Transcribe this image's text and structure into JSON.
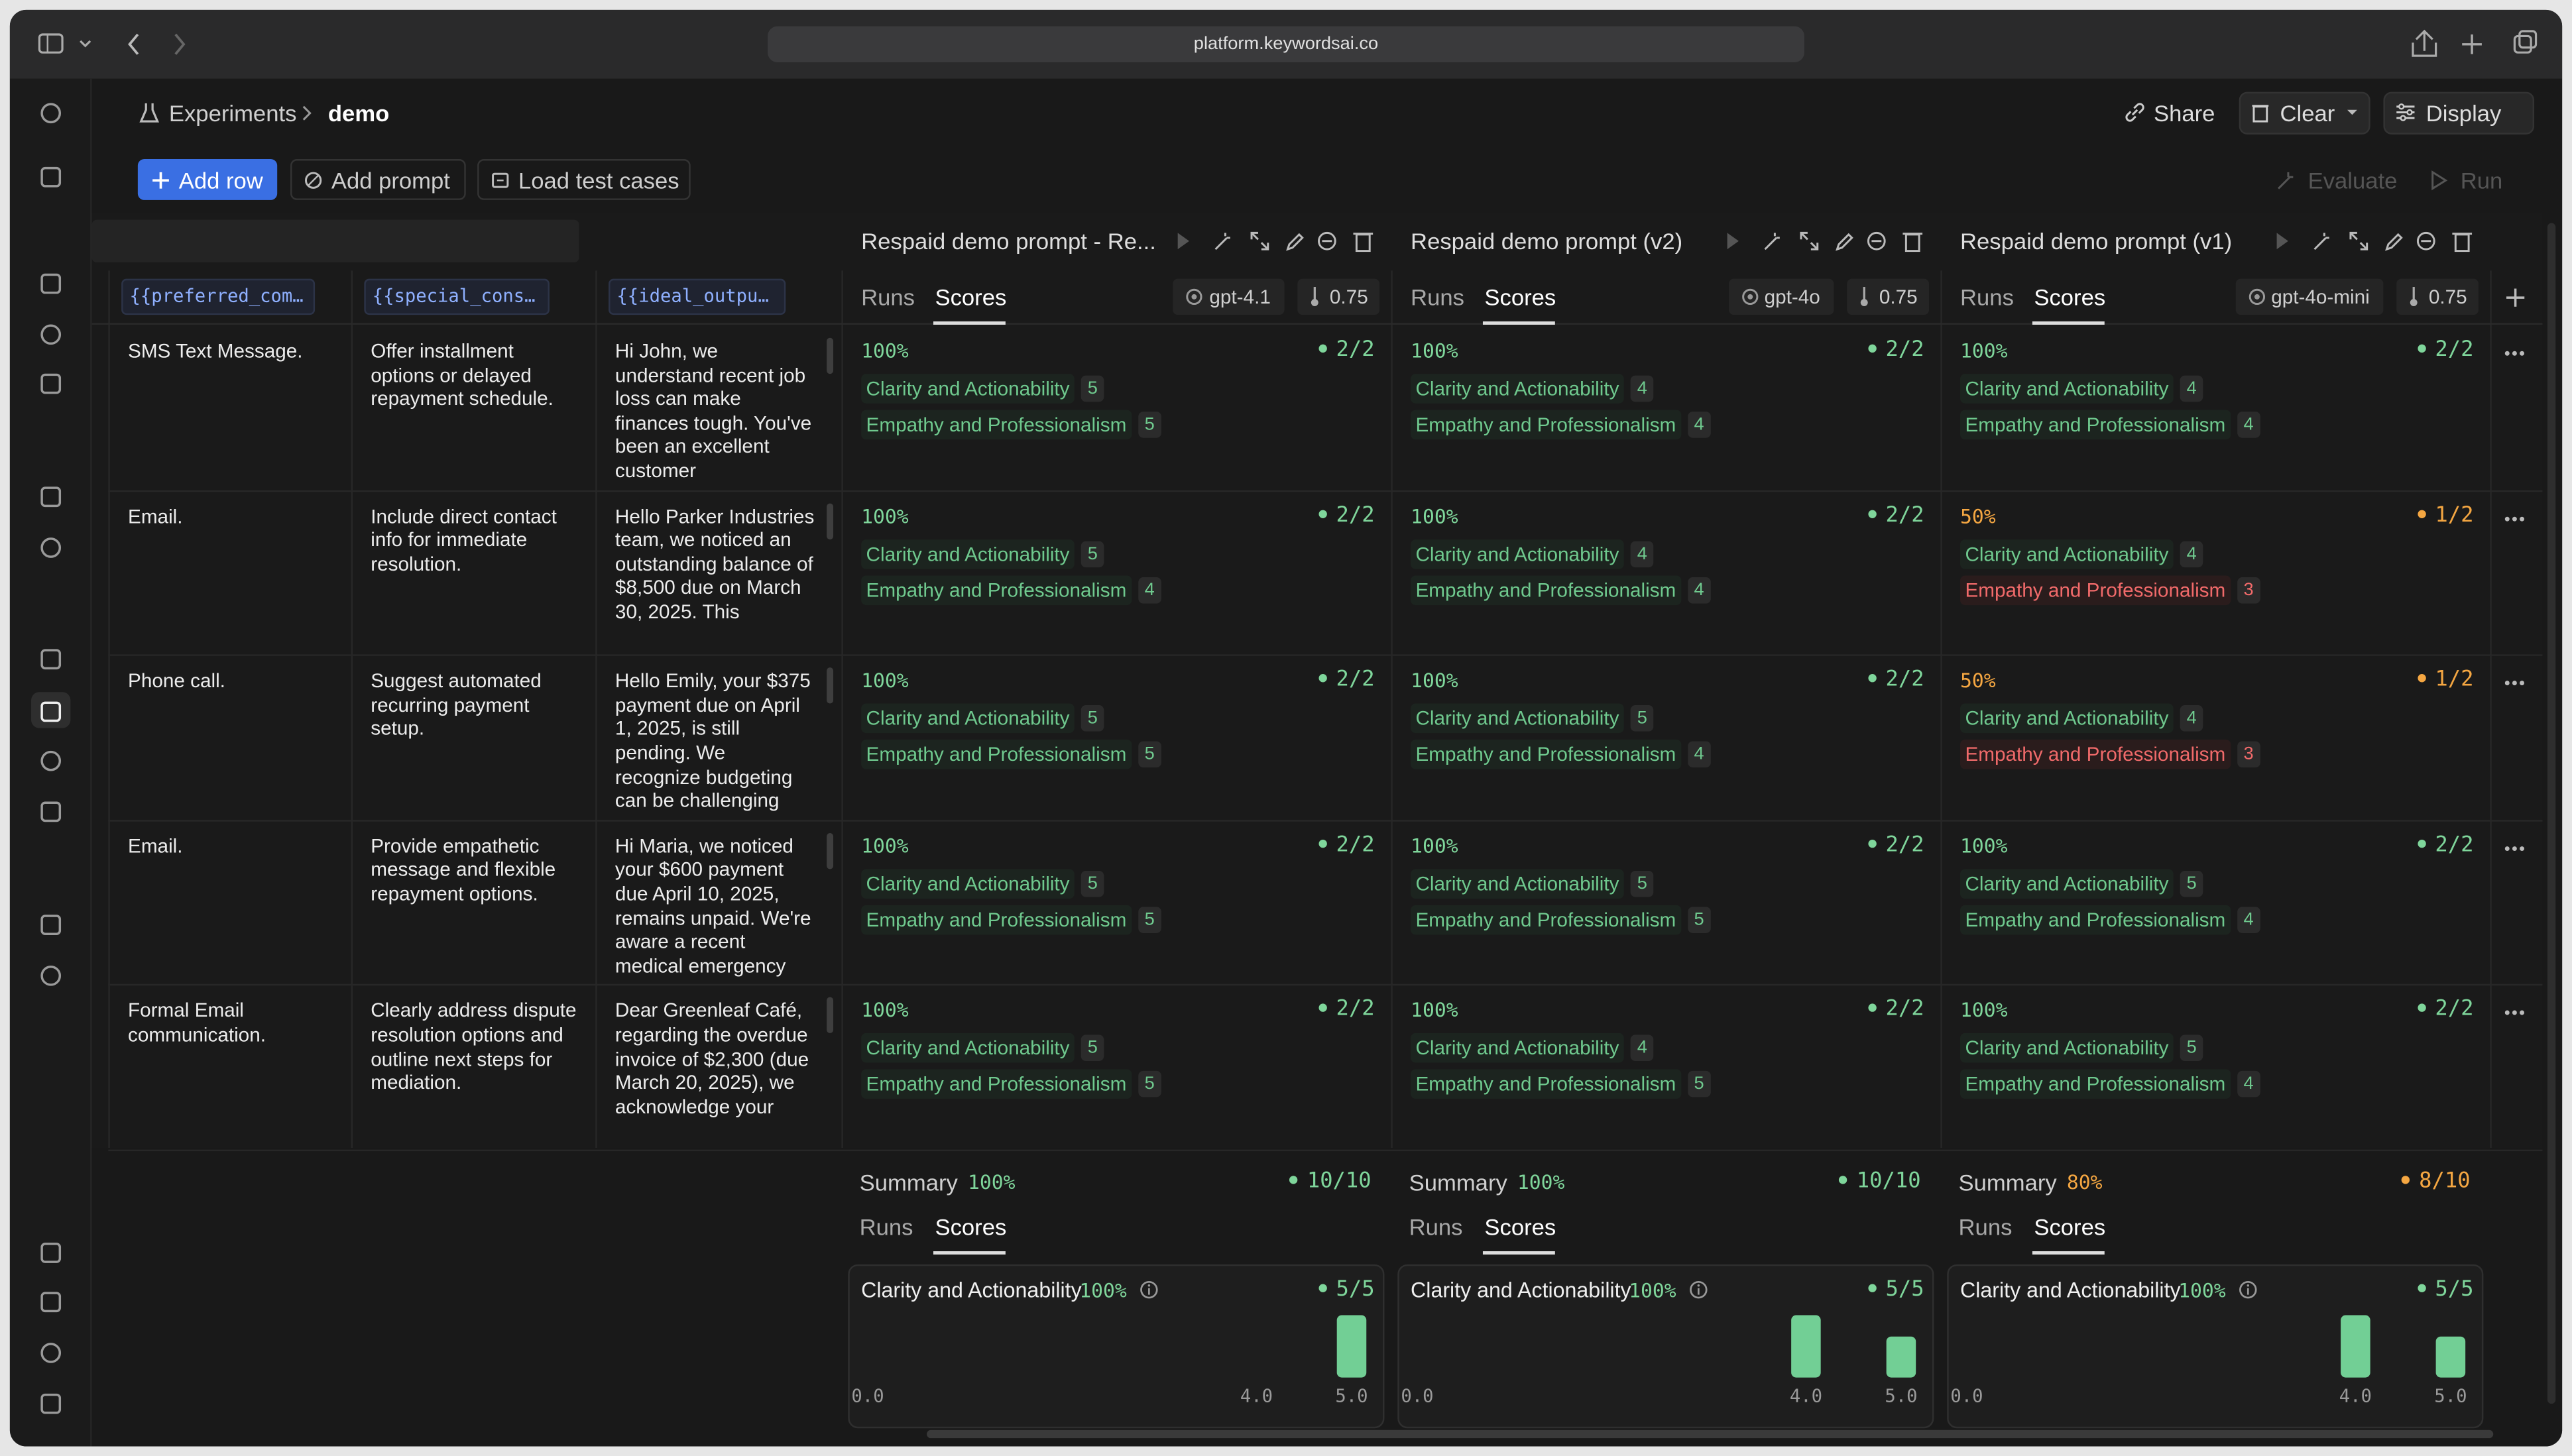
{
  "browser": {
    "url": "platform.keywordsai.co"
  },
  "breadcrumb": [
    "Experiments",
    "demo"
  ],
  "header_actions": [
    "Share",
    "Clear",
    "Display"
  ],
  "toolbar": {
    "left": [
      "Add row",
      "Add prompt",
      "Load test cases"
    ],
    "right": [
      "Evaluate",
      "Run"
    ]
  },
  "variables": [
    "{{preferred_comm…",
    "{{special_consid…",
    "{{ideal_output}}"
  ],
  "tabs": [
    "Runs",
    "Scores"
  ],
  "metrics": [
    "Clarity and Actionability",
    "Empathy and Professionalism"
  ],
  "summary_label": "Summary",
  "prompts": [
    {
      "title": "Respaid demo prompt - Re...",
      "model": "gpt-4.1",
      "temperature": 0.75,
      "summary": {
        "score": "100%",
        "count": "10/10",
        "card": {
          "score": "100%",
          "count": "5/5",
          "ticks": [
            {
              "value": 0,
              "label": "0.0"
            },
            {
              "value": 4,
              "label": "4.0"
            },
            {
              "value": 5,
              "label": "5.0"
            }
          ],
          "bars": [
            {
              "score": 5,
              "count": 5
            }
          ]
        }
      }
    },
    {
      "title": "Respaid demo prompt (v2)",
      "model": "gpt-4o",
      "temperature": 0.75,
      "summary": {
        "score": "100%",
        "count": "10/10",
        "card": {
          "score": "100%",
          "count": "5/5",
          "ticks": [
            {
              "value": 0,
              "label": "0.0"
            },
            {
              "value": 4,
              "label": "4.0"
            },
            {
              "value": 5,
              "label": "5.0"
            }
          ],
          "bars": [
            {
              "score": 4,
              "count": 3
            },
            {
              "score": 5,
              "count": 2
            }
          ]
        }
      }
    },
    {
      "title": "Respaid demo prompt (v1)",
      "model": "gpt-4o-mini",
      "temperature": 0.75,
      "summary": {
        "score": "80%",
        "count": "8/10",
        "card": {
          "score": "100%",
          "count": "5/5",
          "ticks": [
            {
              "value": 0,
              "label": "0.0"
            },
            {
              "value": 4,
              "label": "4.0"
            },
            {
              "value": 5,
              "label": "5.0"
            }
          ],
          "bars": [
            {
              "score": 4,
              "count": 3
            },
            {
              "score": 5,
              "count": 2
            }
          ]
        }
      }
    }
  ],
  "rows": [
    {
      "inputs": [
        "SMS Text Message.",
        "Offer installment options or delayed repayment schedule.",
        "Hi John, we understand recent job loss can make finances tough. You've been an excellent customer"
      ],
      "results": [
        {
          "score": "100%",
          "count": "2/2",
          "values": [
            5,
            5
          ]
        },
        {
          "score": "100%",
          "count": "2/2",
          "values": [
            4,
            4
          ]
        },
        {
          "score": "100%",
          "count": "2/2",
          "values": [
            4,
            4
          ]
        }
      ]
    },
    {
      "inputs": [
        "Email.",
        "Include direct contact info for immediate resolution.",
        "Hello Parker Industries team, we noticed an outstanding balance of $8,500 due on March 30, 2025. This"
      ],
      "results": [
        {
          "score": "100%",
          "count": "2/2",
          "values": [
            5,
            4
          ]
        },
        {
          "score": "100%",
          "count": "2/2",
          "values": [
            4,
            4
          ]
        },
        {
          "score": "50%",
          "count": "1/2",
          "values": [
            4,
            3
          ]
        }
      ]
    },
    {
      "inputs": [
        "Phone call.",
        "Suggest automated recurring payment setup.",
        "Hello Emily, your $375 payment due on April 1, 2025, is still pending. We recognize budgeting can be challenging"
      ],
      "results": [
        {
          "score": "100%",
          "count": "2/2",
          "values": [
            5,
            5
          ]
        },
        {
          "score": "100%",
          "count": "2/2",
          "values": [
            5,
            4
          ]
        },
        {
          "score": "50%",
          "count": "1/2",
          "values": [
            4,
            3
          ]
        }
      ]
    },
    {
      "inputs": [
        "Email.",
        "Provide empathetic message and flexible repayment options.",
        "Hi Maria, we noticed your $600 payment due April 10, 2025, remains unpaid. We're aware a recent medical emergency"
      ],
      "results": [
        {
          "score": "100%",
          "count": "2/2",
          "values": [
            5,
            5
          ]
        },
        {
          "score": "100%",
          "count": "2/2",
          "values": [
            5,
            5
          ]
        },
        {
          "score": "100%",
          "count": "2/2",
          "values": [
            5,
            4
          ]
        }
      ]
    },
    {
      "inputs": [
        "Formal Email communication.",
        "Clearly address dispute resolution options and outline next steps for mediation.",
        "Dear Greenleaf Café, regarding the overdue invoice of $2,300 (due March 20, 2025), we acknowledge your"
      ],
      "results": [
        {
          "score": "100%",
          "count": "2/2",
          "values": [
            5,
            5
          ]
        },
        {
          "score": "100%",
          "count": "2/2",
          "values": [
            4,
            5
          ]
        },
        {
          "score": "100%",
          "count": "2/2",
          "values": [
            5,
            4
          ]
        }
      ]
    }
  ]
}
